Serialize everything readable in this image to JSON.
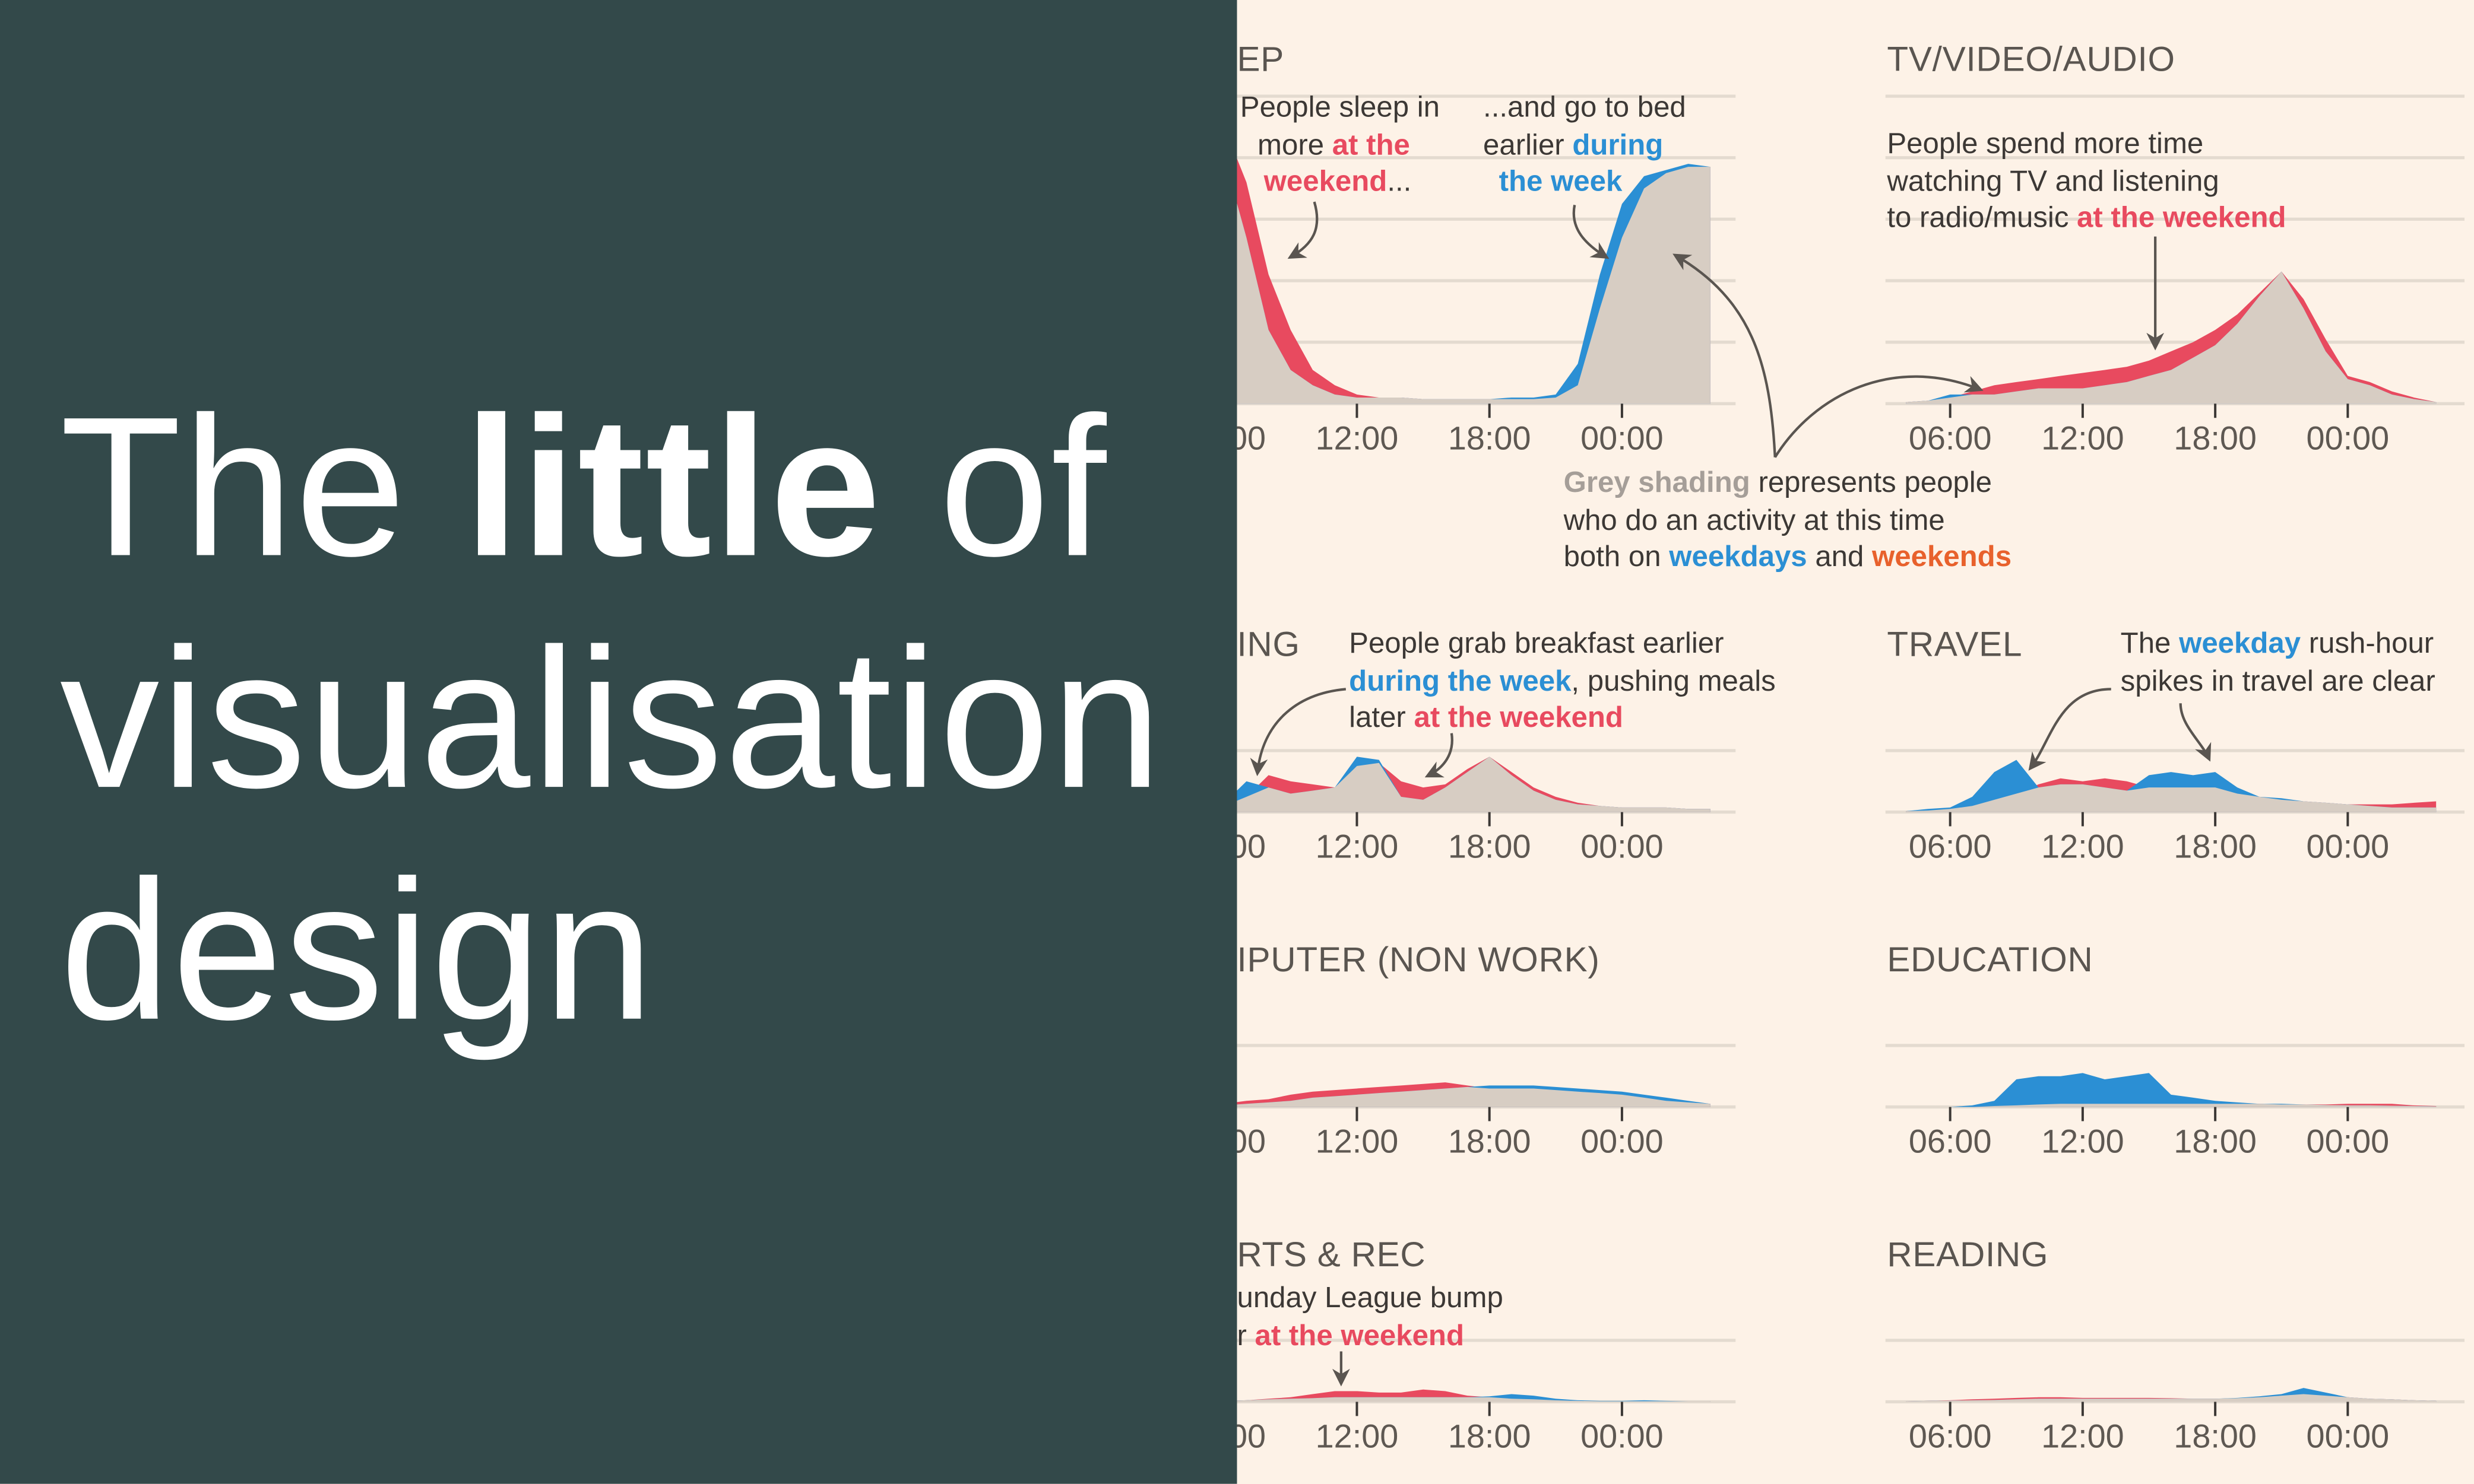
{
  "headline": {
    "pre": "The ",
    "bold": "little",
    "post": " of",
    "line2": "visualisation",
    "line3": "design"
  },
  "colors": {
    "weekday": "#2b8fd4",
    "weekend": "#e84a5f",
    "both": "#d7cdc3",
    "orange": "#e8612c",
    "grey_text": "#a59e98",
    "text": "#3c3835",
    "panel": "#33494a",
    "background": "#fdf2e7"
  },
  "x_tick_labels": [
    "06:00",
    "12:00",
    "18:00",
    "00:00"
  ],
  "chart_data": [
    {
      "type": "area",
      "title": "EP",
      "x": [
        "04:00",
        "05:00",
        "06:00",
        "07:00",
        "08:00",
        "09:00",
        "10:00",
        "11:00",
        "12:00",
        "13:00",
        "14:00",
        "15:00",
        "16:00",
        "17:00",
        "18:00",
        "19:00",
        "20:00",
        "21:00",
        "22:00",
        "23:00",
        "00:00",
        "01:00",
        "02:00",
        "03:00",
        "04:00"
      ],
      "series": [
        {
          "key": "weekday",
          "values": [
            97,
            92,
            80,
            54,
            24,
            11,
            6,
            3,
            2,
            2,
            2,
            1.5,
            1.5,
            1.5,
            1.5,
            2,
            2,
            3,
            13,
            42,
            65,
            74,
            76,
            78,
            77
          ]
        },
        {
          "key": "weekend",
          "values": [
            97,
            96,
            90,
            72,
            42,
            24,
            11,
            6,
            3,
            2,
            2,
            1.5,
            1.5,
            1.5,
            1.5,
            1.5,
            1.5,
            2,
            6,
            31,
            54,
            70,
            75,
            77,
            77
          ]
        }
      ]
    },
    {
      "type": "area",
      "title": "TV/VIDEO/AUDIO",
      "x": [
        "04:00",
        "05:00",
        "06:00",
        "07:00",
        "08:00",
        "09:00",
        "10:00",
        "11:00",
        "12:00",
        "13:00",
        "14:00",
        "15:00",
        "16:00",
        "17:00",
        "18:00",
        "19:00",
        "20:00",
        "21:00",
        "22:00",
        "23:00",
        "00:00",
        "01:00",
        "02:00",
        "03:00",
        "04:00"
      ],
      "series": [
        {
          "key": "weekday",
          "values": [
            0.5,
            1,
            3,
            3,
            3,
            4,
            5,
            5,
            5,
            6,
            7,
            9,
            11,
            15,
            19,
            26,
            35,
            43,
            31,
            17,
            8,
            6,
            3,
            1.5,
            0.5
          ]
        },
        {
          "key": "weekend",
          "values": [
            0.5,
            1,
            2,
            4,
            6,
            7,
            8,
            9,
            10,
            11,
            12,
            14,
            17,
            20,
            24,
            29,
            36,
            43,
            34,
            21,
            9,
            7,
            4,
            2,
            0.5
          ]
        }
      ]
    },
    {
      "type": "area",
      "title": "ING",
      "x": [
        "04:00",
        "05:00",
        "06:00",
        "07:00",
        "08:00",
        "09:00",
        "10:00",
        "11:00",
        "12:00",
        "13:00",
        "14:00",
        "15:00",
        "16:00",
        "17:00",
        "18:00",
        "19:00",
        "20:00",
        "21:00",
        "22:00",
        "23:00",
        "00:00",
        "01:00",
        "02:00",
        "03:00",
        "04:00"
      ],
      "series": [
        {
          "key": "weekday",
          "values": [
            1,
            1.5,
            3,
            10,
            8,
            6,
            7,
            8,
            18,
            17,
            5,
            4,
            8,
            13,
            18,
            12,
            7,
            4,
            2.5,
            2,
            1.5,
            1.5,
            1.5,
            1,
            1
          ]
        },
        {
          "key": "weekend",
          "values": [
            1,
            1,
            2,
            5,
            12,
            10,
            9,
            8,
            15,
            16,
            10,
            8,
            9,
            14,
            18,
            13,
            8,
            5,
            3,
            2,
            1.5,
            1.5,
            1.5,
            1,
            1
          ]
        }
      ]
    },
    {
      "type": "area",
      "title": "TRAVEL",
      "x": [
        "04:00",
        "05:00",
        "06:00",
        "07:00",
        "08:00",
        "09:00",
        "10:00",
        "11:00",
        "12:00",
        "13:00",
        "14:00",
        "15:00",
        "16:00",
        "17:00",
        "18:00",
        "19:00",
        "20:00",
        "21:00",
        "22:00",
        "23:00",
        "00:00",
        "01:00",
        "02:00",
        "03:00",
        "04:00"
      ],
      "series": [
        {
          "key": "weekday",
          "values": [
            0.3,
            1,
            1.5,
            5,
            13,
            17,
            8,
            9,
            9,
            8,
            7,
            12,
            13,
            12,
            13,
            8,
            5,
            4.5,
            3.5,
            3,
            2.5,
            2,
            1.5,
            1.5,
            1.5
          ]
        },
        {
          "key": "weekend",
          "values": [
            0.3,
            0.5,
            1,
            2,
            4,
            6,
            9,
            11,
            10,
            11,
            10,
            8,
            8,
            8,
            8,
            6,
            5,
            4,
            3.5,
            3,
            2.5,
            2.5,
            2.5,
            3,
            3.5
          ]
        }
      ]
    },
    {
      "type": "area",
      "title": "IPUTER (NON WORK)",
      "x": [
        "04:00",
        "05:00",
        "06:00",
        "07:00",
        "08:00",
        "09:00",
        "10:00",
        "11:00",
        "12:00",
        "13:00",
        "14:00",
        "15:00",
        "16:00",
        "17:00",
        "18:00",
        "19:00",
        "20:00",
        "21:00",
        "22:00",
        "23:00",
        "00:00",
        "01:00",
        "02:00",
        "03:00",
        "04:00"
      ],
      "series": [
        {
          "key": "weekday",
          "values": [
            0.3,
            0.4,
            0.5,
            1,
            1.5,
            2,
            3,
            3.5,
            4,
            4.5,
            5,
            5.5,
            6,
            6.5,
            7,
            7,
            7,
            6.5,
            6,
            5.5,
            5,
            4,
            3,
            2,
            1
          ]
        },
        {
          "key": "weekend",
          "values": [
            0.5,
            0.7,
            1,
            2,
            2.5,
            4,
            5,
            5.5,
            6,
            6.5,
            7,
            7.5,
            8,
            7,
            6,
            6,
            6,
            5.5,
            5,
            4.5,
            4,
            3,
            2,
            1.5,
            1
          ]
        }
      ]
    },
    {
      "type": "area",
      "title": "EDUCATION",
      "x": [
        "04:00",
        "05:00",
        "06:00",
        "07:00",
        "08:00",
        "09:00",
        "10:00",
        "11:00",
        "12:00",
        "13:00",
        "14:00",
        "15:00",
        "16:00",
        "17:00",
        "18:00",
        "19:00",
        "20:00",
        "21:00",
        "22:00",
        "23:00",
        "00:00",
        "01:00",
        "02:00",
        "03:00",
        "04:00"
      ],
      "series": [
        {
          "key": "weekday",
          "values": [
            0,
            0,
            0,
            0.5,
            2,
            9,
            10,
            10,
            11,
            9,
            10,
            11,
            4,
            3,
            2,
            1.5,
            1,
            1,
            0.8,
            0.6,
            0.5,
            0.5,
            0.4,
            0.3,
            0.2
          ]
        },
        {
          "key": "weekend",
          "values": [
            0,
            0,
            0,
            0,
            0.3,
            0.5,
            0.8,
            1,
            1,
            1,
            1,
            1,
            1,
            1,
            1,
            1,
            1,
            0.8,
            0.8,
            0.8,
            1,
            1,
            1,
            0.5,
            0.3
          ]
        }
      ]
    },
    {
      "type": "area",
      "title": "RTS & REC",
      "x": [
        "04:00",
        "05:00",
        "06:00",
        "07:00",
        "08:00",
        "09:00",
        "10:00",
        "11:00",
        "12:00",
        "13:00",
        "14:00",
        "15:00",
        "16:00",
        "17:00",
        "18:00",
        "19:00",
        "20:00",
        "21:00",
        "22:00",
        "23:00",
        "00:00",
        "01:00",
        "02:00",
        "03:00",
        "04:00"
      ],
      "series": [
        {
          "key": "weekday",
          "values": [
            0.2,
            0.2,
            0.3,
            0.5,
            0.8,
            1,
            1.2,
            1.5,
            1.5,
            1.5,
            1.5,
            1.5,
            1.5,
            1.5,
            1.8,
            2.5,
            2,
            1,
            0.5,
            0.3,
            0.3,
            0.5,
            0.3,
            0.2,
            0.2
          ]
        },
        {
          "key": "weekend",
          "values": [
            0.2,
            0.2,
            0.3,
            0.5,
            1,
            1.5,
            2.5,
            3.5,
            3.5,
            3,
            3,
            4,
            3.5,
            2,
            1.5,
            1,
            0.8,
            0.5,
            0.3,
            0.2,
            0.2,
            0.2,
            0.2,
            0.2,
            0.2
          ]
        }
      ]
    },
    {
      "type": "area",
      "title": "READING",
      "x": [
        "04:00",
        "05:00",
        "06:00",
        "07:00",
        "08:00",
        "09:00",
        "10:00",
        "11:00",
        "12:00",
        "13:00",
        "14:00",
        "15:00",
        "16:00",
        "17:00",
        "18:00",
        "19:00",
        "20:00",
        "21:00",
        "22:00",
        "23:00",
        "00:00",
        "01:00",
        "02:00",
        "03:00",
        "04:00"
      ],
      "series": [
        {
          "key": "weekday",
          "values": [
            0.2,
            0.3,
            0.4,
            0.5,
            0.6,
            0.8,
            1,
            1,
            1,
            1,
            1,
            1,
            1,
            1,
            1,
            1.3,
            1.8,
            2.5,
            4.5,
            3,
            1.5,
            1,
            0.8,
            0.5,
            0.3
          ]
        },
        {
          "key": "weekend",
          "values": [
            0.2,
            0.3,
            0.5,
            0.8,
            1,
            1.3,
            1.5,
            1.5,
            1.3,
            1.3,
            1.3,
            1.3,
            1.2,
            1,
            1,
            1.2,
            1.5,
            2,
            2.5,
            2,
            1.5,
            1,
            0.8,
            0.5,
            0.3
          ]
        }
      ]
    }
  ],
  "annotations": [
    {
      "name": "sleep-in-note",
      "lines": [
        [
          {
            "t": "People sleep in",
            "c": "text"
          }
        ],
        [
          {
            "t": "more ",
            "c": "text"
          },
          {
            "t": "at the",
            "c": "weekend"
          }
        ],
        [
          {
            "t": "weekend",
            "c": "weekend"
          },
          {
            "t": "...",
            "c": "text"
          }
        ]
      ]
    },
    {
      "name": "bed-earlier-note",
      "lines": [
        [
          {
            "t": "...and go to bed",
            "c": "text"
          }
        ],
        [
          {
            "t": "earlier ",
            "c": "text"
          },
          {
            "t": "during",
            "c": "weekday"
          }
        ],
        [
          {
            "t": "the week",
            "c": "weekday"
          }
        ]
      ]
    },
    {
      "name": "tv-note",
      "lines": [
        [
          {
            "t": "People spend more time",
            "c": "text"
          }
        ],
        [
          {
            "t": "watching TV and listening",
            "c": "text"
          }
        ],
        [
          {
            "t": "to radio/music ",
            "c": "text"
          },
          {
            "t": "at the weekend",
            "c": "weekend"
          }
        ]
      ]
    },
    {
      "name": "grey-shading-note",
      "lines": [
        [
          {
            "t": "Grey shading",
            "c": "grey_text"
          },
          {
            "t": " represents people",
            "c": "text"
          }
        ],
        [
          {
            "t": "who do an activity at this time",
            "c": "text"
          }
        ],
        [
          {
            "t": "both on ",
            "c": "text"
          },
          {
            "t": "weekdays",
            "c": "weekday"
          },
          {
            "t": " and ",
            "c": "text"
          },
          {
            "t": "weekends",
            "c": "orange"
          }
        ]
      ]
    },
    {
      "name": "breakfast-note",
      "lines": [
        [
          {
            "t": "People grab breakfast earlier",
            "c": "text"
          }
        ],
        [
          {
            "t": "during the week",
            "c": "weekday"
          },
          {
            "t": ", pushing meals",
            "c": "text"
          }
        ],
        [
          {
            "t": "later ",
            "c": "text"
          },
          {
            "t": "at the weekend",
            "c": "weekend"
          }
        ]
      ]
    },
    {
      "name": "travel-note",
      "lines": [
        [
          {
            "t": "The ",
            "c": "text"
          },
          {
            "t": "weekday",
            "c": "weekday"
          },
          {
            "t": " rush-hour",
            "c": "text"
          }
        ],
        [
          {
            "t": "spikes in travel are clear",
            "c": "text"
          }
        ]
      ]
    },
    {
      "name": "sports-note",
      "lines": [
        [
          {
            "t": "unday League bump",
            "c": "text"
          }
        ],
        [
          {
            "t": "r ",
            "c": "text"
          },
          {
            "t": "at the weekend",
            "c": "weekend"
          }
        ]
      ]
    }
  ]
}
